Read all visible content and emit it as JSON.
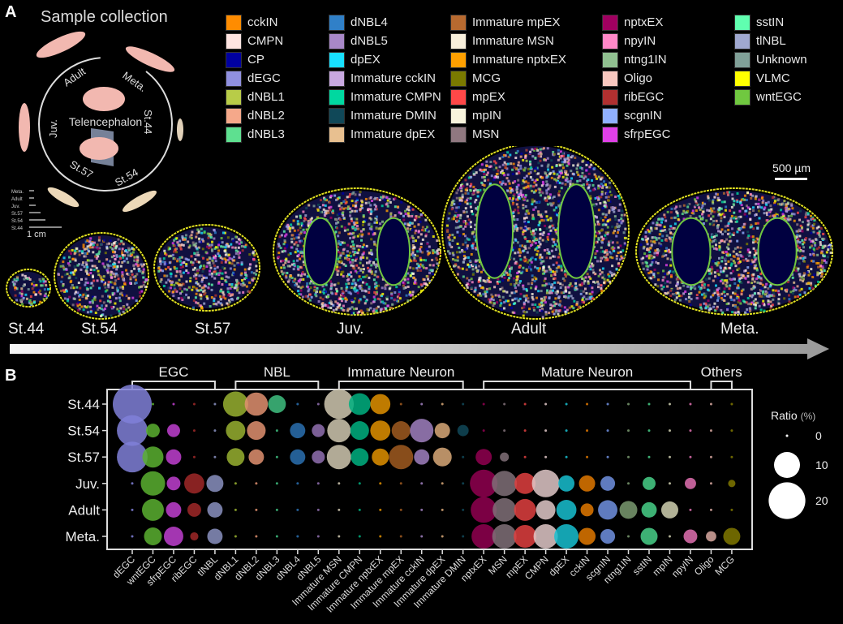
{
  "panel_a": {
    "letter": "A",
    "title": "Sample collection",
    "cycle_labels": {
      "adult": "Adult",
      "meta": "Meta.",
      "juv": "Juv.",
      "st44": "St.44",
      "st57": "St.57",
      "st54": "St.54",
      "center": "Telencephalon"
    },
    "size_scale": {
      "rows": [
        "Meta.",
        "Adult",
        "Juv.",
        "St.57",
        "St.54",
        "St.44"
      ],
      "unit": "1 cm"
    },
    "scale_bar": "500 µm",
    "legend": [
      {
        "label": "cckIN",
        "color": "#ff8c00"
      },
      {
        "label": "CMPN",
        "color": "#ffe4e1"
      },
      {
        "label": "CP",
        "color": "#0000a0"
      },
      {
        "label": "dEGC",
        "color": "#9090e0"
      },
      {
        "label": "dNBL1",
        "color": "#b8cc48"
      },
      {
        "label": "dNBL2",
        "color": "#f5a88a"
      },
      {
        "label": "dNBL3",
        "color": "#5ee090"
      },
      {
        "label": "dNBL4",
        "color": "#3080c8"
      },
      {
        "label": "dNBL5",
        "color": "#a888c8"
      },
      {
        "label": "dpEX",
        "color": "#18e0ff"
      },
      {
        "label": "Immature cckIN",
        "color": "#c8a8e0"
      },
      {
        "label": "Immature CMPN",
        "color": "#00d8a0"
      },
      {
        "label": "Immature DMIN",
        "color": "#104858"
      },
      {
        "label": "Immature dpEX",
        "color": "#e8c090"
      },
      {
        "label": "Immature mpEX",
        "color": "#b86a30"
      },
      {
        "label": "Immature MSN",
        "color": "#f8f0dc"
      },
      {
        "label": "Immature nptxEX",
        "color": "#ffa000"
      },
      {
        "label": "MCG",
        "color": "#7a7a00"
      },
      {
        "label": "mpEX",
        "color": "#ff4848"
      },
      {
        "label": "mpIN",
        "color": "#f8f4dc"
      },
      {
        "label": "MSN",
        "color": "#907880"
      },
      {
        "label": "nptxEX",
        "color": "#a00060"
      },
      {
        "label": "npyIN",
        "color": "#ff88c8"
      },
      {
        "label": "ntng1IN",
        "color": "#90c090"
      },
      {
        "label": "Oligo",
        "color": "#f8c8c0"
      },
      {
        "label": "ribEGC",
        "color": "#b03030"
      },
      {
        "label": "scgnIN",
        "color": "#90b0ff"
      },
      {
        "label": "sfrpEGC",
        "color": "#e040e8"
      },
      {
        "label": "sstIN",
        "color": "#60ffb0"
      },
      {
        "label": "tlNBL",
        "color": "#a0a8d0"
      },
      {
        "label": "Unknown",
        "color": "#80a098"
      },
      {
        "label": "VLMC",
        "color": "#ffff00"
      },
      {
        "label": "wntEGC",
        "color": "#70c840"
      }
    ],
    "stages": [
      "St.44",
      "St.54",
      "St.57",
      "Juv.",
      "Adult",
      "Meta."
    ]
  },
  "chart_data": {
    "type": "dot",
    "panel_letter": "B",
    "groups": [
      {
        "label": "EGC",
        "from": "dEGC",
        "to": "tlNBL"
      },
      {
        "label": "NBL",
        "from": "dNBL1",
        "to": "dNBL5"
      },
      {
        "label": "Immature Neuron",
        "from": "Immature MSN",
        "to": "Immature DMIN"
      },
      {
        "label": "Mature Neuron",
        "from": "nptxEX",
        "to": "npyIN"
      },
      {
        "label": "Others",
        "from": "Oligo",
        "to": "MCG"
      }
    ],
    "columns": [
      "dEGC",
      "wntEGC",
      "sfrpEGC",
      "ribEGC",
      "tlNBL",
      "dNBL1",
      "dNBL2",
      "dNBL3",
      "dNBL4",
      "dNBL5",
      "Immature MSN",
      "Immature CMPN",
      "Immature nptxEX",
      "Immature mpEX",
      "Immature cckIN",
      "Immature dpEX",
      "Immature DMIN",
      "nptxEX",
      "MSN",
      "mpEX",
      "CMPN",
      "dpEX",
      "cckIN",
      "scgnIN",
      "ntng1IN",
      "sstIN",
      "mpIN",
      "npyIN",
      "Oligo",
      "MCG"
    ],
    "column_colors": [
      "#8080d8",
      "#5ab030",
      "#c040d0",
      "#a02828",
      "#8a90c0",
      "#98b030",
      "#e09070",
      "#40c080",
      "#2a70b0",
      "#9070b0",
      "#d0c8b0",
      "#00b080",
      "#e09000",
      "#a05a20",
      "#a080c0",
      "#d8a878",
      "#104858",
      "#900050",
      "#807078",
      "#e04040",
      "#e0c8c8",
      "#18c0d0",
      "#e07800",
      "#7090e0",
      "#7a9a70",
      "#48d088",
      "#d0d0b0",
      "#e070b0",
      "#d8a8a0",
      "#807800"
    ],
    "rows": [
      "St.44",
      "St.54",
      "St.57",
      "Juv.",
      "Adult",
      "Meta."
    ],
    "values": [
      [
        22.5,
        0,
        0,
        0,
        0,
        9.4,
        8,
        4.7,
        0,
        0,
        13,
        7,
        6,
        0,
        0,
        0,
        0,
        0,
        0,
        0,
        0,
        0,
        0,
        0,
        0,
        0,
        0,
        0,
        0,
        0
      ],
      [
        14,
        2.8,
        2.5,
        0,
        0,
        5.6,
        5.2,
        0,
        3.5,
        2.5,
        8.2,
        5.2,
        6,
        5.2,
        8.2,
        3.5,
        1.9,
        0,
        0,
        0,
        0,
        0,
        0,
        0,
        0,
        0,
        0,
        0,
        0,
        0
      ],
      [
        14,
        6.6,
        3.5,
        0,
        0,
        4.7,
        3.5,
        0,
        3.5,
        2.5,
        8.8,
        4.7,
        4.3,
        8.8,
        3.5,
        5.2,
        0,
        3.9,
        1.2,
        0,
        0,
        0,
        0,
        0,
        0,
        0,
        0,
        0,
        0,
        0
      ],
      [
        0,
        8.8,
        2.8,
        6,
        4.3,
        0,
        0,
        0,
        0,
        0,
        0,
        0,
        0,
        0,
        0,
        0,
        0,
        11.3,
        9.4,
        6.6,
        11.3,
        3.9,
        3.9,
        3.2,
        0,
        2.5,
        0,
        1.9,
        0,
        0.8
      ],
      [
        0,
        7.1,
        3.5,
        2.8,
        3.5,
        0,
        0,
        0,
        0,
        0,
        0,
        0,
        0,
        0,
        0,
        0,
        0,
        10,
        8.2,
        7.1,
        5.6,
        6,
        2.5,
        5.6,
        4.7,
        3.5,
        4.3,
        0,
        0,
        0
      ],
      [
        0,
        4.7,
        5.6,
        1,
        3.5,
        0,
        0,
        0,
        0,
        0,
        0,
        0,
        0,
        0,
        0,
        0,
        0,
        8.8,
        8.8,
        7.7,
        8.8,
        8.8,
        4.3,
        3.2,
        0,
        4.3,
        0,
        2.8,
        1.6,
        4.3
      ]
    ],
    "size_legend": {
      "title": "Ratio",
      "unit": "(%)",
      "values": [
        0,
        10,
        20
      ]
    }
  }
}
